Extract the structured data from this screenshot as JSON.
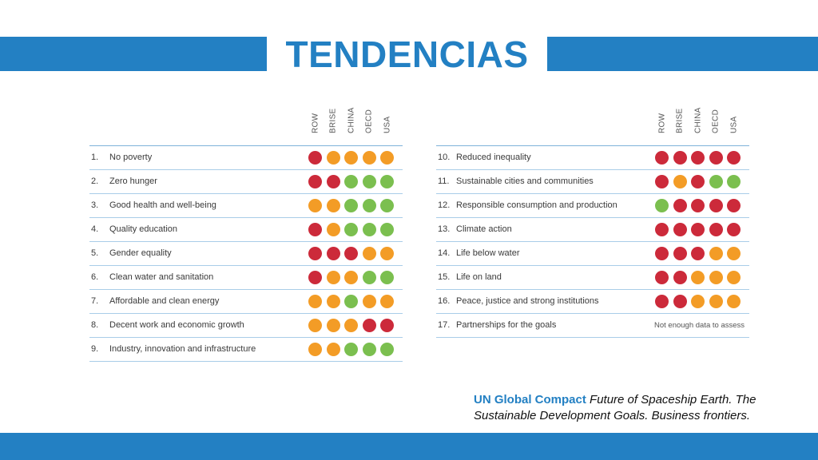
{
  "title": "TENDENCIAS",
  "columns": [
    "ROW",
    "BRISE",
    "CHINA",
    "OECD",
    "USA"
  ],
  "colors": {
    "red": "#cc2a3a",
    "orange": "#f39c26",
    "green": "#7bbf4f",
    "accent": "#2380c3"
  },
  "left_goals": [
    {
      "num": "1.",
      "label": "No poverty",
      "ratings": [
        "red",
        "orange",
        "orange",
        "orange",
        "orange"
      ]
    },
    {
      "num": "2.",
      "label": "Zero hunger",
      "ratings": [
        "red",
        "red",
        "green",
        "green",
        "green"
      ]
    },
    {
      "num": "3.",
      "label": "Good health and well-being",
      "ratings": [
        "orange",
        "orange",
        "green",
        "green",
        "green"
      ]
    },
    {
      "num": "4.",
      "label": "Quality education",
      "ratings": [
        "red",
        "orange",
        "green",
        "green",
        "green"
      ]
    },
    {
      "num": "5.",
      "label": "Gender equality",
      "ratings": [
        "red",
        "red",
        "red",
        "orange",
        "orange"
      ]
    },
    {
      "num": "6.",
      "label": "Clean water and sanitation",
      "ratings": [
        "red",
        "orange",
        "orange",
        "green",
        "green"
      ]
    },
    {
      "num": "7.",
      "label": "Affordable and clean energy",
      "ratings": [
        "orange",
        "orange",
        "green",
        "orange",
        "orange"
      ]
    },
    {
      "num": "8.",
      "label": "Decent work and economic growth",
      "ratings": [
        "orange",
        "orange",
        "orange",
        "red",
        "red"
      ]
    },
    {
      "num": "9.",
      "label": "Industry, innovation and infrastructure",
      "ratings": [
        "orange",
        "orange",
        "green",
        "green",
        "green"
      ]
    }
  ],
  "right_goals": [
    {
      "num": "10.",
      "label": "Reduced inequality",
      "ratings": [
        "red",
        "red",
        "red",
        "red",
        "red"
      ]
    },
    {
      "num": "11.",
      "label": "Sustainable cities and communities",
      "ratings": [
        "red",
        "orange",
        "red",
        "green",
        "green"
      ]
    },
    {
      "num": "12.",
      "label": "Responsible consumption and production",
      "ratings": [
        "green",
        "red",
        "red",
        "red",
        "red"
      ]
    },
    {
      "num": "13.",
      "label": "Climate action",
      "ratings": [
        "red",
        "red",
        "red",
        "red",
        "red"
      ]
    },
    {
      "num": "14.",
      "label": "Life below water",
      "ratings": [
        "red",
        "red",
        "red",
        "orange",
        "orange"
      ]
    },
    {
      "num": "15.",
      "label": "Life on land",
      "ratings": [
        "red",
        "red",
        "orange",
        "orange",
        "orange"
      ]
    },
    {
      "num": "16.",
      "label": "Peace, justice and strong institutions",
      "ratings": [
        "red",
        "red",
        "orange",
        "orange",
        "orange"
      ]
    },
    {
      "num": "17.",
      "label": "Partnerships for the goals",
      "ratings": [],
      "note": "Not enough data to assess"
    }
  ],
  "citation": {
    "source": "UN Global Compact",
    "reference": "Future of Spaceship Earth. The Sustainable Development Goals. Business frontiers."
  }
}
